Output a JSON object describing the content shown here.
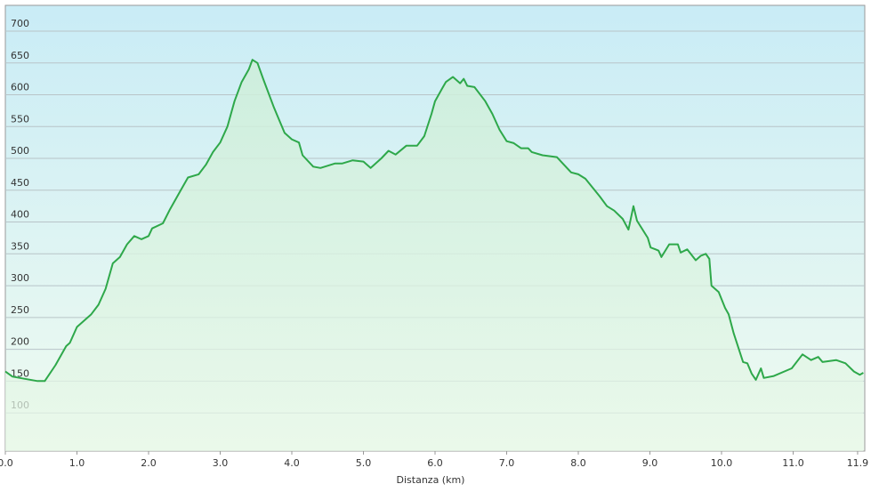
{
  "chart_data": {
    "type": "area",
    "x_label": "Distanza  (km)",
    "color": "#2ea84a",
    "grid": true,
    "xlim": [
      0,
      12
    ],
    "ylim": [
      40,
      740
    ],
    "xticks": [
      {
        "value": 0,
        "label": "0.0"
      },
      {
        "value": 1,
        "label": "1.0"
      },
      {
        "value": 2,
        "label": "2.0"
      },
      {
        "value": 3,
        "label": "3.0"
      },
      {
        "value": 4,
        "label": "4.0"
      },
      {
        "value": 5,
        "label": "5.0"
      },
      {
        "value": 6,
        "label": "6.0"
      },
      {
        "value": 7,
        "label": "7.0"
      },
      {
        "value": 8,
        "label": "8.0"
      },
      {
        "value": 9,
        "label": "9.0"
      },
      {
        "value": 10,
        "label": "10.0"
      },
      {
        "value": 11,
        "label": "11.0"
      },
      {
        "value": 11.9,
        "label": "11.9"
      }
    ],
    "yticks": [
      100,
      150,
      200,
      250,
      300,
      350,
      400,
      450,
      500,
      550,
      600,
      650,
      700
    ],
    "x": [
      0,
      0.1,
      0.3,
      0.45,
      0.55,
      0.7,
      0.85,
      0.9,
      1.0,
      1.2,
      1.3,
      1.4,
      1.5,
      1.6,
      1.7,
      1.8,
      1.9,
      2.0,
      2.05,
      2.2,
      2.3,
      2.45,
      2.55,
      2.7,
      2.8,
      2.9,
      3.0,
      3.1,
      3.2,
      3.3,
      3.4,
      3.45,
      3.52,
      3.6,
      3.75,
      3.9,
      4.0,
      4.1,
      4.15,
      4.3,
      4.4,
      4.6,
      4.7,
      4.85,
      5.0,
      5.1,
      5.25,
      5.35,
      5.45,
      5.6,
      5.75,
      5.85,
      5.95,
      6.0,
      6.1,
      6.15,
      6.25,
      6.35,
      6.4,
      6.45,
      6.55,
      6.7,
      6.8,
      6.9,
      7.0,
      7.1,
      7.2,
      7.3,
      7.35,
      7.5,
      7.7,
      7.8,
      7.9,
      8.0,
      8.1,
      8.3,
      8.4,
      8.5,
      8.62,
      8.7,
      8.77,
      8.82,
      8.97,
      9.01,
      9.08,
      9.12,
      9.16,
      9.27,
      9.39,
      9.43,
      9.52,
      9.64,
      9.71,
      9.78,
      9.83,
      9.86,
      9.96,
      10.05,
      10.1,
      10.17,
      10.3,
      10.36,
      10.42,
      10.48,
      10.55,
      10.59,
      10.73,
      10.98,
      11.13,
      11.25,
      11.35,
      11.41,
      11.6,
      11.73,
      11.85,
      11.93,
      11.98
    ],
    "values": [
      165,
      157,
      153,
      150,
      150,
      175,
      205,
      210,
      235,
      255,
      270,
      295,
      335,
      345,
      365,
      378,
      373,
      378,
      390,
      398,
      420,
      450,
      470,
      475,
      490,
      510,
      525,
      550,
      590,
      620,
      640,
      655,
      650,
      625,
      580,
      540,
      530,
      525,
      505,
      487,
      485,
      492,
      492,
      497,
      495,
      485,
      500,
      512,
      506,
      520,
      520,
      535,
      570,
      590,
      610,
      620,
      628,
      618,
      625,
      614,
      612,
      590,
      570,
      545,
      527,
      524,
      516,
      516,
      510,
      505,
      502,
      490,
      478,
      475,
      468,
      440,
      425,
      418,
      405,
      388,
      425,
      402,
      375,
      360,
      357,
      355,
      345,
      365,
      365,
      352,
      357,
      340,
      347,
      350,
      342,
      300,
      290,
      265,
      255,
      225,
      180,
      178,
      162,
      152,
      170,
      155,
      158,
      170,
      192,
      183,
      188,
      180,
      183,
      178,
      165,
      160,
      163
    ]
  }
}
